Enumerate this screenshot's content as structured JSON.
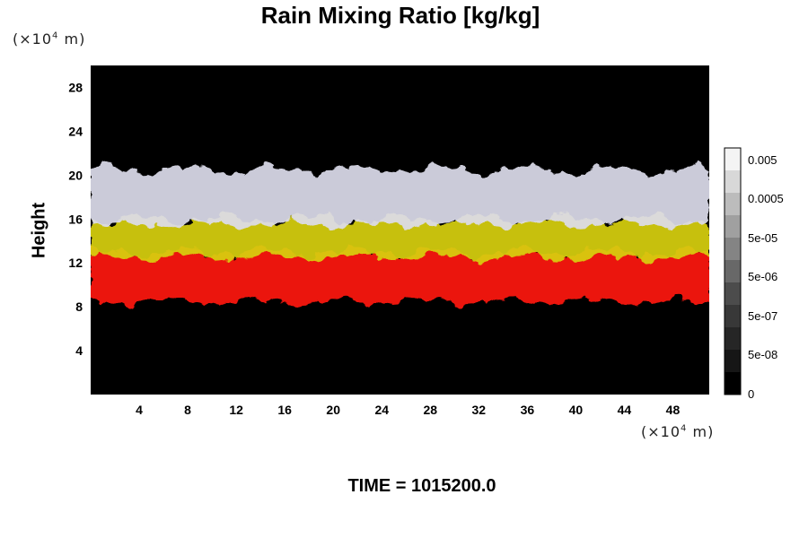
{
  "chart_data": {
    "type": "heatmap",
    "title": "Rain Mixing Ratio [kg/kg]",
    "ylabel": "Height",
    "xlabel": "",
    "x_unit": "(×10⁴ m)",
    "y_unit": "(×10⁴ m)",
    "xlim": [
      0,
      51
    ],
    "ylim": [
      0,
      30
    ],
    "x_ticks": [
      "4",
      "8",
      "12",
      "16",
      "20",
      "24",
      "28",
      "32",
      "36",
      "40",
      "44",
      "48"
    ],
    "y_ticks": [
      "4",
      "8",
      "12",
      "16",
      "20",
      "24",
      "28"
    ],
    "colorbar": {
      "labels": [
        "0.005",
        "0.0005",
        "5e-05",
        "5e-06",
        "5e-07",
        "5e-08",
        "0"
      ],
      "colors": [
        "#f4f4f4",
        "#d8d8d8",
        "#bcbcbc",
        "#a0a0a0",
        "#848484",
        "#686868",
        "#4c4c4c",
        "#383838",
        "#262626",
        "#161616",
        "#000000"
      ]
    },
    "layers": [
      {
        "name": "red layer",
        "color": "#ff1a10",
        "y_range": [
          8.5,
          13
        ]
      },
      {
        "name": "yellow layer",
        "color": "#d8d010",
        "y_range": [
          12.5,
          16
        ]
      },
      {
        "name": "white layer",
        "color": "#dcdcec",
        "y_range": [
          15.5,
          20.5
        ]
      }
    ],
    "background": "#000000"
  },
  "footer": {
    "time_label": "TIME = 1015200.0"
  }
}
